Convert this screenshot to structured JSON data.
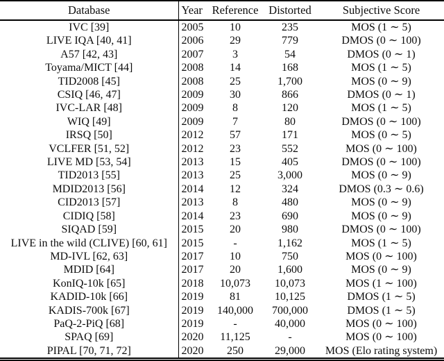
{
  "colors": {
    "background": "#ffffff",
    "text": "#0d0d0d",
    "rule": "#000000"
  },
  "table": {
    "columns": [
      "Database",
      "Year",
      "Reference",
      "Distorted",
      "Subjective Score"
    ],
    "rows": [
      {
        "database": "IVC [39]",
        "year": "2005",
        "reference": "10",
        "distorted": "235",
        "subjective_score": "MOS (1 ∼ 5)"
      },
      {
        "database": "LIVE IQA [40, 41]",
        "year": "2006",
        "reference": "29",
        "distorted": "779",
        "subjective_score": "DMOS (0 ∼ 100)"
      },
      {
        "database": "A57 [42, 43]",
        "year": "2007",
        "reference": "3",
        "distorted": "54",
        "subjective_score": "DMOS (0 ∼ 1)"
      },
      {
        "database": "Toyama/MICT [44]",
        "year": "2008",
        "reference": "14",
        "distorted": "168",
        "subjective_score": "MOS (1 ∼ 5)"
      },
      {
        "database": "TID2008 [45]",
        "year": "2008",
        "reference": "25",
        "distorted": "1,700",
        "subjective_score": "MOS (0 ∼ 9)"
      },
      {
        "database": "CSIQ [46, 47]",
        "year": "2009",
        "reference": "30",
        "distorted": "866",
        "subjective_score": "DMOS (0 ∼ 1)"
      },
      {
        "database": "IVC-LAR [48]",
        "year": "2009",
        "reference": "8",
        "distorted": "120",
        "subjective_score": "MOS (1 ∼ 5)"
      },
      {
        "database": "WIQ [49]",
        "year": "2009",
        "reference": "7",
        "distorted": "80",
        "subjective_score": "DMOS (0 ∼ 100)"
      },
      {
        "database": "IRSQ [50]",
        "year": "2012",
        "reference": "57",
        "distorted": "171",
        "subjective_score": "MOS (0 ∼ 5)"
      },
      {
        "database": "VCLFER [51, 52]",
        "year": "2012",
        "reference": "23",
        "distorted": "552",
        "subjective_score": "MOS (0 ∼ 100)"
      },
      {
        "database": "LIVE MD [53, 54]",
        "year": "2013",
        "reference": "15",
        "distorted": "405",
        "subjective_score": "DMOS (0 ∼ 100)"
      },
      {
        "database": "TID2013 [55]",
        "year": "2013",
        "reference": "25",
        "distorted": "3,000",
        "subjective_score": "MOS (0 ∼ 9)"
      },
      {
        "database": "MDID2013 [56]",
        "year": "2014",
        "reference": "12",
        "distorted": "324",
        "subjective_score": "DMOS (0.3 ∼ 0.6)"
      },
      {
        "database": "CID2013 [57]",
        "year": "2013",
        "reference": "8",
        "distorted": "480",
        "subjective_score": "MOS (0 ∼ 9)"
      },
      {
        "database": "CIDIQ [58]",
        "year": "2014",
        "reference": "23",
        "distorted": "690",
        "subjective_score": "MOS (0 ∼ 9)"
      },
      {
        "database": "SIQAD [59]",
        "year": "2015",
        "reference": "20",
        "distorted": "980",
        "subjective_score": "DMOS (0 ∼ 100)"
      },
      {
        "database": "LIVE in the wild (CLIVE) [60, 61]",
        "year": "2015",
        "reference": "-",
        "distorted": "1,162",
        "subjective_score": "MOS (1 ∼ 5)"
      },
      {
        "database": "MD-IVL [62, 63]",
        "year": "2017",
        "reference": "10",
        "distorted": "750",
        "subjective_score": "MOS (0 ∼ 100)"
      },
      {
        "database": "MDID [64]",
        "year": "2017",
        "reference": "20",
        "distorted": "1,600",
        "subjective_score": "MOS (0 ∼ 9)"
      },
      {
        "database": "KonIQ-10k [65]",
        "year": "2018",
        "reference": "10,073",
        "distorted": "10,073",
        "subjective_score": "MOS (1 ∼ 100)"
      },
      {
        "database": "KADID-10k [66]",
        "year": "2019",
        "reference": "81",
        "distorted": "10,125",
        "subjective_score": "DMOS (1 ∼ 5)"
      },
      {
        "database": "KADIS-700k [67]",
        "year": "2019",
        "reference": "140,000",
        "distorted": "700,000",
        "subjective_score": "DMOS (1 ∼ 5)"
      },
      {
        "database": "PaQ-2-PiQ [68]",
        "year": "2019",
        "reference": "-",
        "distorted": "40,000",
        "subjective_score": "MOS (0 ∼ 100)"
      },
      {
        "database": "SPAQ [69]",
        "year": "2020",
        "reference": "11,125",
        "distorted": "-",
        "subjective_score": "MOS (0 ∼ 100)"
      },
      {
        "database": "PIPAL [70, 71, 72]",
        "year": "2020",
        "reference": "250",
        "distorted": "29,000",
        "subjective_score": "MOS (Elo rating system)"
      }
    ]
  }
}
